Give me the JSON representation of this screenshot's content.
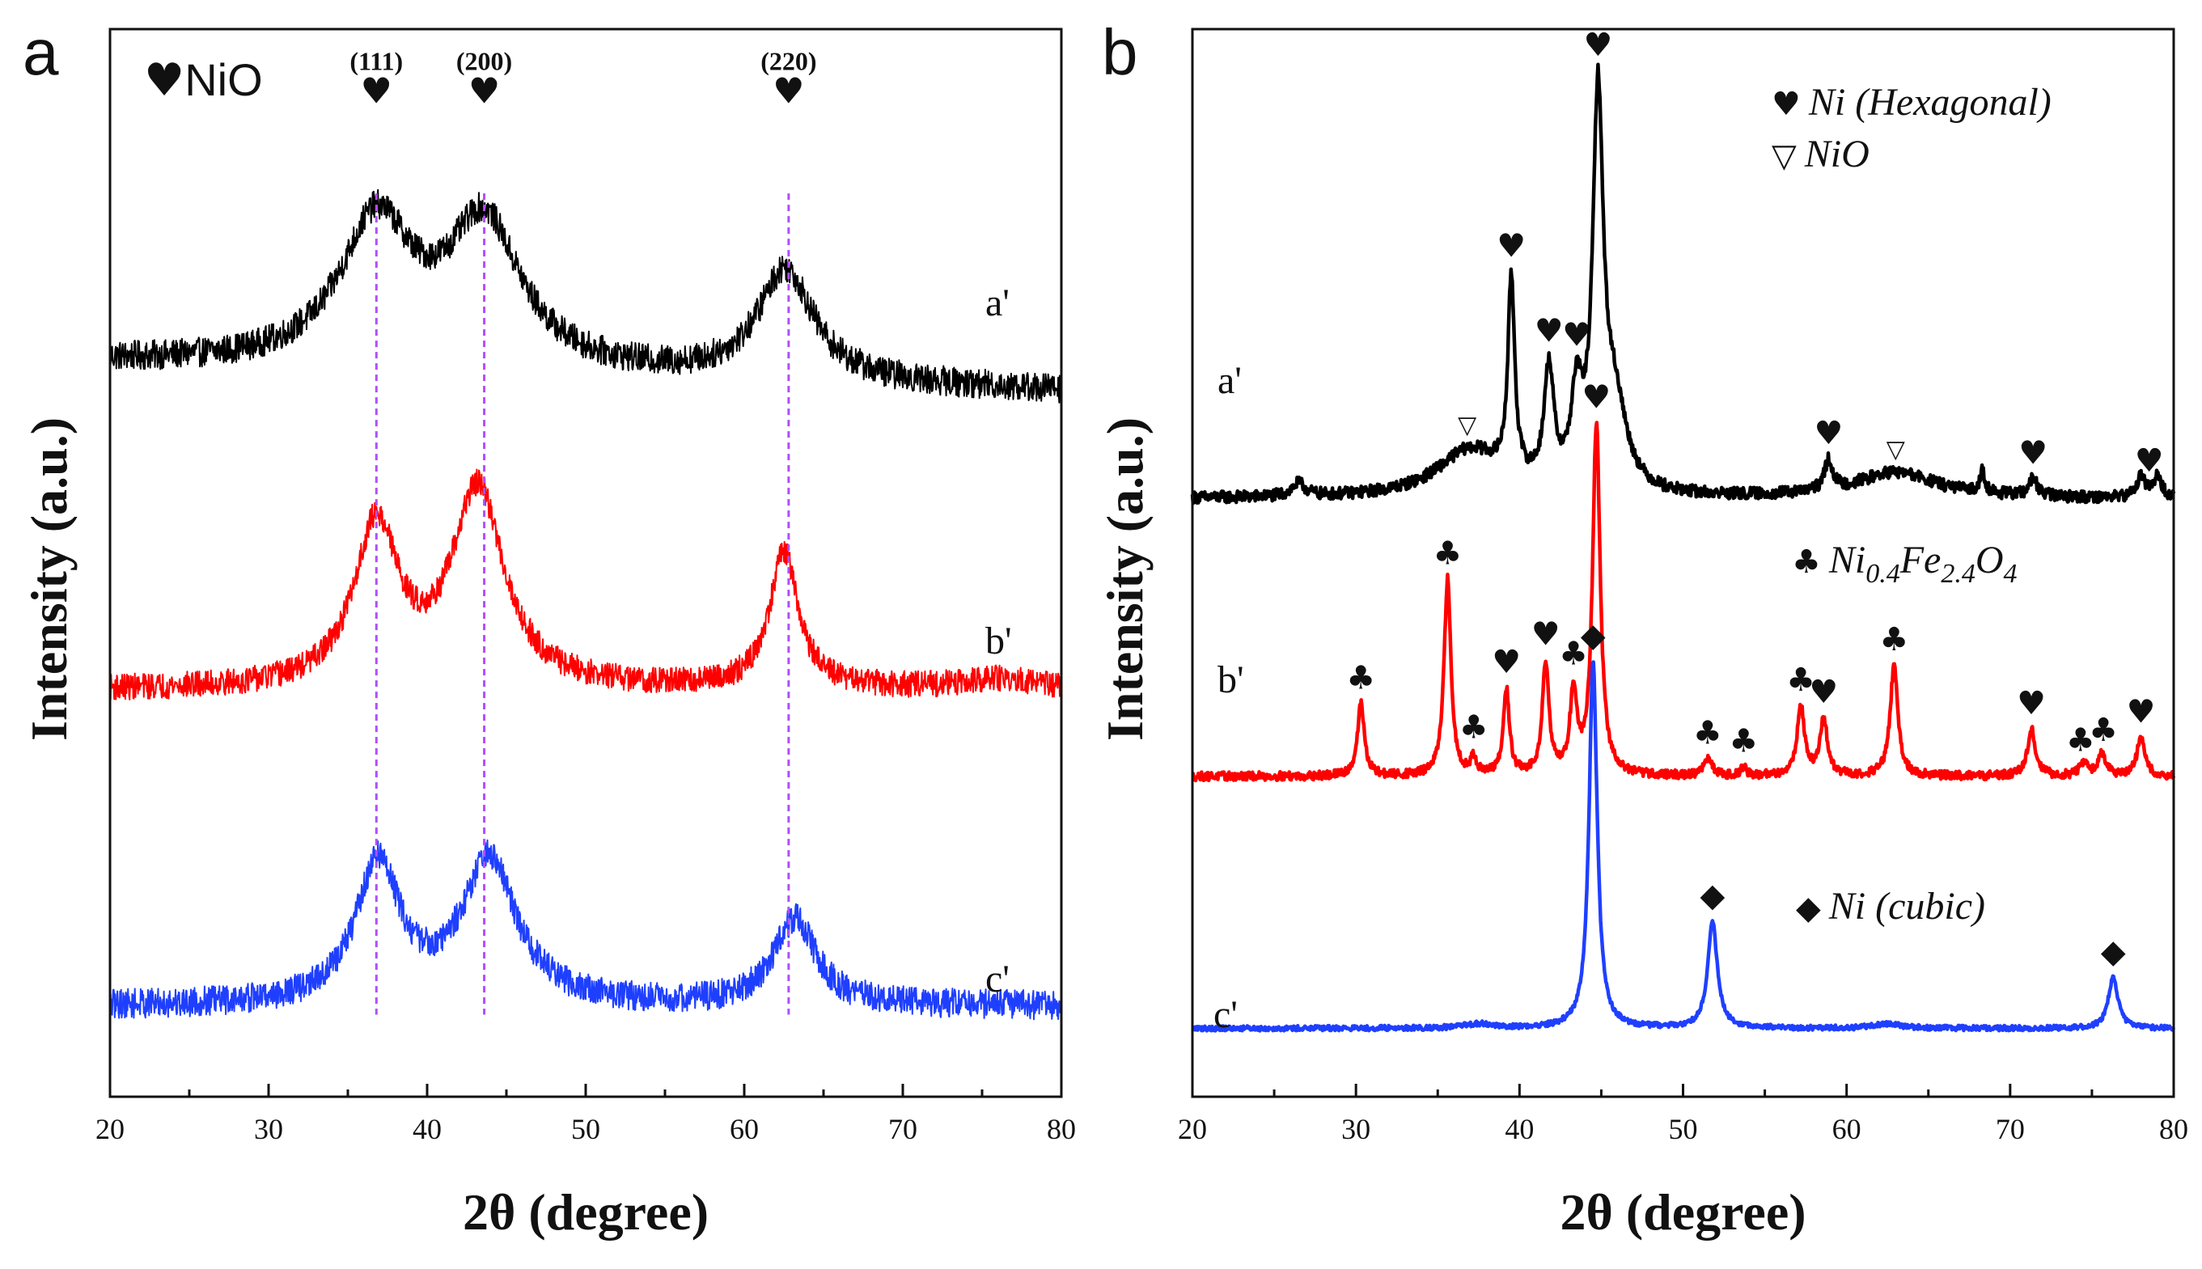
{
  "chart_data": [
    {
      "panel": "a",
      "type": "line",
      "xlabel": "2θ (degree)",
      "ylabel": "Intensity (a.u.)",
      "xlim": [
        20,
        80
      ],
      "xticks": [
        20,
        30,
        40,
        50,
        60,
        70,
        80
      ],
      "legend": [
        {
          "symbol": "♥",
          "text": "NiO",
          "italic": false
        }
      ],
      "peak_markers": [
        {
          "x": 36.8,
          "hkl": "(111)",
          "symbol": "♥"
        },
        {
          "x": 43.6,
          "hkl": "(200)",
          "symbol": "♥"
        },
        {
          "x": 62.8,
          "hkl": "(220)",
          "symbol": "♥"
        }
      ],
      "reference_lines": [
        36.8,
        43.6,
        62.8
      ],
      "series": [
        {
          "name": "a'",
          "color": "#000000",
          "baseline": 8.15,
          "noise": 0.18,
          "peaks": [
            [
              36.8,
              1.75,
              2.8
            ],
            [
              43.6,
              1.75,
              2.8
            ],
            [
              62.6,
              1.35,
              2.1
            ]
          ],
          "slope": -0.006
        },
        {
          "name": "b'",
          "color": "#ff0000",
          "baseline": 4.15,
          "noise": 0.16,
          "peaks": [
            [
              36.8,
              1.95,
              1.7
            ],
            [
              43.2,
              2.4,
              2.0
            ],
            [
              62.5,
              1.65,
              1.1
            ],
            [
              76.0,
              0.12,
              3.0
            ]
          ],
          "slope": 0.0
        },
        {
          "name": "c'",
          "color": "#1f3fff",
          "baseline": 0.3,
          "noise": 0.18,
          "peaks": [
            [
              36.9,
              1.7,
              1.7
            ],
            [
              43.9,
              1.75,
              2.1
            ],
            [
              63.2,
              1.05,
              1.6
            ]
          ],
          "slope": 0.0
        }
      ],
      "ylim": [
        -0.8,
        12.2
      ]
    },
    {
      "panel": "b",
      "type": "line",
      "xlabel": "2θ (degree)",
      "ylabel": "Intensity (a.u.)",
      "xlim": [
        20,
        80
      ],
      "xticks": [
        20,
        30,
        40,
        50,
        60,
        70,
        80
      ],
      "legend": [
        {
          "symbol": "♥",
          "text": "Ni (Hexagonal)",
          "italic": true
        },
        {
          "symbol": "▽",
          "text": "NiO",
          "italic": true
        },
        {
          "symbol": "♣",
          "text": "Ni",
          "sub1": "0.4",
          "text2": "Fe",
          "sub2": "2.4",
          "text3": "O",
          "sub3": "4",
          "italic": true
        },
        {
          "symbol": "◆",
          "text": "Ni (cubic)",
          "italic": true
        }
      ],
      "series": [
        {
          "name": "a'",
          "color": "#000000",
          "baseline": 7.0,
          "noise": 0.07,
          "peaks": [
            [
              26.5,
              0.15,
              0.5
            ],
            [
              37.0,
              0.55,
              2.5
            ],
            [
              39.5,
              2.3,
              0.25
            ],
            [
              41.8,
              1.35,
              0.35
            ],
            [
              43.5,
              1.0,
              0.4
            ],
            [
              44.8,
              4.4,
              0.38
            ],
            [
              45.8,
              1.0,
              0.9
            ],
            [
              58.9,
              0.35,
              0.3
            ],
            [
              63.0,
              0.3,
              3.0
            ],
            [
              68.3,
              0.25,
              0.2
            ],
            [
              71.4,
              0.2,
              0.3
            ],
            [
              78.0,
              0.25,
              0.3
            ],
            [
              79.0,
              0.25,
              0.3
            ]
          ],
          "slope": 0.0
        },
        {
          "name": "b'",
          "color": "#ff0000",
          "baseline": 3.75,
          "noise": 0.05,
          "peaks": [
            [
              30.3,
              0.85,
              0.25
            ],
            [
              35.6,
              2.3,
              0.25
            ],
            [
              37.2,
              0.2,
              0.2
            ],
            [
              39.2,
              1.0,
              0.22
            ],
            [
              41.6,
              1.3,
              0.25
            ],
            [
              43.3,
              0.95,
              0.25
            ],
            [
              44.7,
              4.1,
              0.28
            ],
            [
              51.5,
              0.2,
              0.3
            ],
            [
              53.7,
              0.1,
              0.2
            ],
            [
              57.2,
              0.8,
              0.28
            ],
            [
              58.6,
              0.65,
              0.28
            ],
            [
              62.9,
              1.3,
              0.28
            ],
            [
              71.3,
              0.55,
              0.3
            ],
            [
              74.5,
              0.15,
              0.3
            ],
            [
              75.6,
              0.25,
              0.3
            ],
            [
              78.0,
              0.45,
              0.3
            ]
          ],
          "slope": 0.0
        },
        {
          "name": "c'",
          "color": "#1f3fff",
          "baseline": 0.8,
          "noise": 0.03,
          "peaks": [
            [
              37.5,
              0.05,
              1.0
            ],
            [
              44.5,
              4.3,
              0.3
            ],
            [
              51.8,
              1.25,
              0.35
            ],
            [
              62.5,
              0.05,
              1.0
            ],
            [
              76.3,
              0.6,
              0.35
            ]
          ],
          "slope": 0.0
        }
      ],
      "peak_markers": [
        {
          "series": "a'",
          "x": 39.5,
          "symbol": "♥"
        },
        {
          "series": "a'",
          "x": 41.8,
          "symbol": "♥"
        },
        {
          "series": "a'",
          "x": 43.5,
          "symbol": "♥"
        },
        {
          "series": "a'",
          "x": 44.8,
          "symbol": "♥"
        },
        {
          "series": "a'",
          "x": 36.8,
          "symbol": "▽"
        },
        {
          "series": "a'",
          "x": 58.9,
          "symbol": "♥"
        },
        {
          "series": "a'",
          "x": 63.0,
          "symbol": "▽"
        },
        {
          "series": "a'",
          "x": 71.4,
          "symbol": "♥"
        },
        {
          "series": "a'",
          "x": 78.5,
          "symbol": "♥"
        },
        {
          "series": "b'",
          "x": 30.3,
          "symbol": "♣"
        },
        {
          "series": "b'",
          "x": 35.6,
          "symbol": "♣"
        },
        {
          "series": "b'",
          "x": 37.2,
          "symbol": "♣"
        },
        {
          "series": "b'",
          "x": 39.2,
          "symbol": "♥"
        },
        {
          "series": "b'",
          "x": 41.6,
          "symbol": "♥"
        },
        {
          "series": "b'",
          "x": 43.3,
          "symbol": "♣"
        },
        {
          "series": "b'",
          "x": 44.7,
          "symbol": "♥"
        },
        {
          "series": "b'",
          "x": 51.5,
          "symbol": "♣"
        },
        {
          "series": "b'",
          "x": 53.7,
          "symbol": "♣"
        },
        {
          "series": "b'",
          "x": 57.2,
          "symbol": "♣"
        },
        {
          "series": "b'",
          "x": 58.6,
          "symbol": "♥"
        },
        {
          "series": "b'",
          "x": 62.9,
          "symbol": "♣"
        },
        {
          "series": "b'",
          "x": 71.3,
          "symbol": "♥"
        },
        {
          "series": "b'",
          "x": 74.3,
          "symbol": "♣"
        },
        {
          "series": "b'",
          "x": 75.7,
          "symbol": "♣"
        },
        {
          "series": "b'",
          "x": 78.0,
          "symbol": "♥"
        },
        {
          "series": "c'",
          "x": 44.5,
          "symbol": "◆"
        },
        {
          "series": "c'",
          "x": 51.8,
          "symbol": "◆"
        },
        {
          "series": "c'",
          "x": 76.3,
          "symbol": "◆"
        }
      ],
      "ylim": [
        0,
        12.5
      ]
    }
  ]
}
